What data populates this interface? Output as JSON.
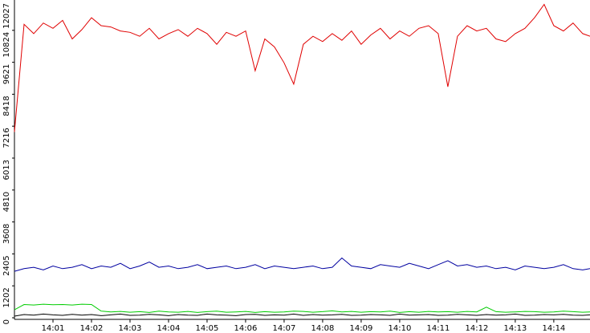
{
  "chart_data": {
    "type": "line",
    "x": [
      0,
      0.25,
      0.5,
      0.75,
      1,
      1.25,
      1.5,
      1.75,
      2,
      2.25,
      2.5,
      2.75,
      3,
      3.25,
      3.5,
      3.75,
      4,
      4.25,
      4.5,
      4.75,
      5,
      5.25,
      5.5,
      5.75,
      6,
      6.25,
      6.5,
      6.75,
      7,
      7.25,
      7.5,
      7.75,
      8,
      8.25,
      8.5,
      8.75,
      9,
      9.25,
      9.5,
      9.75,
      10,
      10.25,
      10.5,
      10.75,
      11,
      11.25,
      11.5,
      11.75,
      12,
      12.25,
      12.5,
      12.75,
      13,
      13.25,
      13.5,
      13.75,
      14,
      14.25,
      14.5,
      14.75,
      14.94
    ],
    "xlim": [
      0,
      14.94
    ],
    "xticks": [
      {
        "value": 1,
        "label": "14:01"
      },
      {
        "value": 2,
        "label": "14:02"
      },
      {
        "value": 3,
        "label": "14:03"
      },
      {
        "value": 4,
        "label": "14:04"
      },
      {
        "value": 5,
        "label": "14:05"
      },
      {
        "value": 6,
        "label": "14:06"
      },
      {
        "value": 7,
        "label": "14:07"
      },
      {
        "value": 8,
        "label": "14:08"
      },
      {
        "value": 9,
        "label": "14:09"
      },
      {
        "value": 10,
        "label": "14:10"
      },
      {
        "value": 11,
        "label": "14:11"
      },
      {
        "value": 12,
        "label": "14:12"
      },
      {
        "value": 13,
        "label": "14:13"
      },
      {
        "value": 14,
        "label": "14:14"
      }
    ],
    "ylim": [
      0,
      12027
    ],
    "yticks": [
      0,
      1202,
      2405,
      3608,
      4810,
      6013,
      7216,
      8418,
      9621,
      10824,
      12027
    ],
    "series": [
      {
        "color": "#e00000",
        "values": [
          7000,
          11050,
          10700,
          11100,
          10900,
          11200,
          10500,
          10850,
          11300,
          11000,
          10950,
          10800,
          10750,
          10600,
          10900,
          10500,
          10700,
          10850,
          10600,
          10900,
          10700,
          10300,
          10750,
          10600,
          10800,
          9300,
          10500,
          10200,
          9600,
          8800,
          10300,
          10600,
          10400,
          10700,
          10450,
          10800,
          10300,
          10650,
          10900,
          10500,
          10800,
          10600,
          10900,
          11000,
          10700,
          8700,
          10600,
          11000,
          10800,
          10900,
          10500,
          10400,
          10700,
          10900,
          11300,
          11800,
          11000,
          10800,
          11100,
          10700,
          10600
        ]
      },
      {
        "color": "#0000a0",
        "values": [
          1750,
          1850,
          1900,
          1800,
          1950,
          1850,
          1900,
          2000,
          1850,
          1950,
          1900,
          2050,
          1850,
          1950,
          2100,
          1900,
          1950,
          1850,
          1900,
          2000,
          1850,
          1900,
          1950,
          1850,
          1900,
          2000,
          1850,
          1950,
          1900,
          1850,
          1900,
          1950,
          1850,
          1900,
          2250,
          1950,
          1900,
          1850,
          2000,
          1950,
          1900,
          2050,
          1950,
          1850,
          2000,
          2150,
          1950,
          2000,
          1900,
          1950,
          1850,
          1900,
          1800,
          1950,
          1900,
          1850,
          1900,
          2000,
          1850,
          1800,
          1850
        ]
      },
      {
        "color": "#00cc00",
        "values": [
          300,
          500,
          480,
          510,
          490,
          500,
          480,
          510,
          500,
          250,
          220,
          240,
          210,
          230,
          200,
          250,
          220,
          210,
          240,
          200,
          230,
          250,
          210,
          220,
          240,
          200,
          230,
          210,
          220,
          250,
          240,
          210,
          230,
          260,
          220,
          240,
          210,
          230,
          220,
          250,
          200,
          230,
          210,
          240,
          220,
          230,
          210,
          240,
          220,
          400,
          230,
          210,
          220,
          240,
          230,
          210,
          220,
          250,
          230,
          210,
          220
        ]
      },
      {
        "color": "#000000",
        "values": [
          60,
          120,
          100,
          140,
          110,
          90,
          130,
          100,
          120,
          80,
          110,
          140,
          90,
          100,
          130,
          110,
          80,
          120,
          100,
          90,
          140,
          110,
          100,
          80,
          120,
          130,
          90,
          110,
          100,
          140,
          90,
          120,
          100,
          110,
          130,
          90,
          100,
          120,
          110,
          90,
          140,
          100,
          110,
          120,
          90,
          100,
          130,
          110,
          90,
          120,
          100,
          110,
          140,
          90,
          100,
          120,
          110,
          130,
          100,
          90,
          110
        ]
      }
    ]
  }
}
